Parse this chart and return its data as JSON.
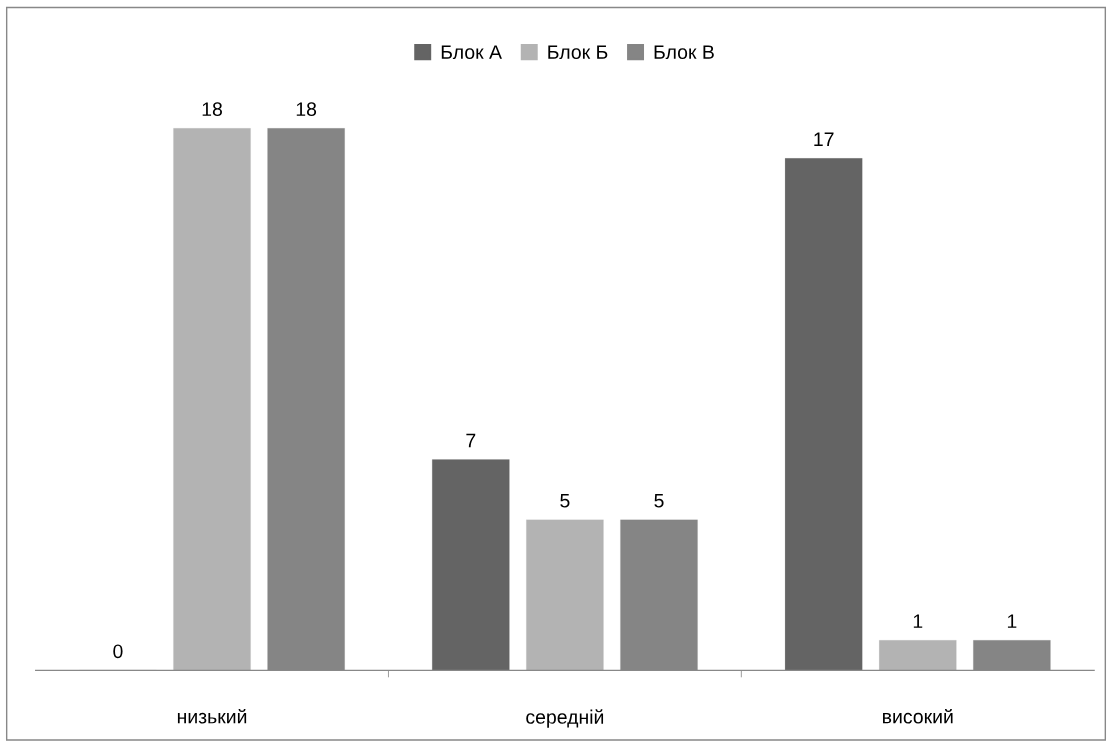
{
  "chart_data": {
    "type": "bar",
    "categories": [
      "низький",
      "середній",
      "високий"
    ],
    "series": [
      {
        "name": "Блок А",
        "color": "#646464",
        "values": [
          0,
          7,
          17
        ]
      },
      {
        "name": "Блок Б",
        "color": "#b3b3b3",
        "values": [
          18,
          5,
          1
        ]
      },
      {
        "name": "Блок В",
        "color": "#858585",
        "values": [
          18,
          5,
          1
        ]
      }
    ],
    "data_labels": true,
    "legend": "top",
    "grid": false
  }
}
